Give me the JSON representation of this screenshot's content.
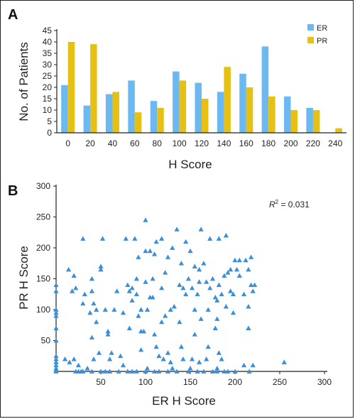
{
  "panels": {
    "a": "A",
    "b": "B"
  },
  "colors": {
    "er": "#6BB9F0",
    "pr": "#E6C012",
    "scatter": "#3A8FD8",
    "axis": "#222222"
  },
  "chart_data": [
    {
      "type": "bar",
      "title": "",
      "xlabel": "H Score",
      "ylabel": "No. of Patients",
      "categories": [
        "0",
        "20",
        "40",
        "60",
        "80",
        "100",
        "120",
        "140",
        "160",
        "180",
        "200",
        "220",
        "240"
      ],
      "ylim": [
        0,
        45
      ],
      "yticks": [
        0,
        5,
        10,
        15,
        20,
        25,
        30,
        35,
        40,
        45
      ],
      "legend_position": "top-right",
      "series": [
        {
          "name": "ER",
          "values": [
            21,
            12,
            17,
            23,
            14,
            27,
            22,
            18,
            26,
            38,
            16,
            11,
            0
          ]
        },
        {
          "name": "PR",
          "values": [
            40,
            39,
            18,
            9,
            11,
            23,
            15,
            29,
            20,
            16,
            10,
            10,
            2
          ]
        }
      ]
    },
    {
      "type": "scatter",
      "title": "",
      "xlabel": "ER H Score",
      "ylabel": "PR H Score",
      "xlim": [
        0,
        300
      ],
      "ylim": [
        0,
        300
      ],
      "xticks": [
        50,
        100,
        150,
        200,
        250,
        300
      ],
      "yticks": [
        50,
        100,
        150,
        200,
        250,
        300
      ],
      "annotation": {
        "prefix": "R",
        "sup": "2",
        "suffix": " = 0.031"
      },
      "points": [
        [
          0,
          140
        ],
        [
          0,
          130
        ],
        [
          0,
          100
        ],
        [
          0,
          95
        ],
        [
          0,
          90
        ],
        [
          0,
          70
        ],
        [
          0,
          50
        ],
        [
          0,
          25
        ],
        [
          0,
          20
        ],
        [
          0,
          15
        ],
        [
          0,
          10
        ],
        [
          0,
          5
        ],
        [
          0,
          2
        ],
        [
          0,
          0
        ],
        [
          10,
          20
        ],
        [
          14,
          165
        ],
        [
          15,
          15
        ],
        [
          18,
          130
        ],
        [
          20,
          155
        ],
        [
          20,
          20
        ],
        [
          22,
          135
        ],
        [
          22,
          0
        ],
        [
          25,
          0
        ],
        [
          25,
          10
        ],
        [
          28,
          0
        ],
        [
          30,
          215
        ],
        [
          30,
          0
        ],
        [
          30,
          110
        ],
        [
          32,
          125
        ],
        [
          35,
          5
        ],
        [
          38,
          95
        ],
        [
          40,
          0
        ],
        [
          40,
          150
        ],
        [
          40,
          130
        ],
        [
          40,
          55
        ],
        [
          42,
          20
        ],
        [
          42,
          110
        ],
        [
          45,
          80
        ],
        [
          45,
          100
        ],
        [
          48,
          30
        ],
        [
          50,
          0
        ],
        [
          50,
          165
        ],
        [
          50,
          170
        ],
        [
          52,
          215
        ],
        [
          55,
          0
        ],
        [
          55,
          100
        ],
        [
          58,
          65
        ],
        [
          58,
          60
        ],
        [
          60,
          0
        ],
        [
          60,
          20
        ],
        [
          62,
          30
        ],
        [
          65,
          100
        ],
        [
          68,
          130
        ],
        [
          70,
          0
        ],
        [
          72,
          25
        ],
        [
          75,
          95
        ],
        [
          75,
          10
        ],
        [
          78,
          215
        ],
        [
          80,
          0
        ],
        [
          80,
          140
        ],
        [
          82,
          130
        ],
        [
          82,
          70
        ],
        [
          85,
          135
        ],
        [
          85,
          115
        ],
        [
          85,
          0
        ],
        [
          88,
          215
        ],
        [
          90,
          0
        ],
        [
          90,
          125
        ],
        [
          90,
          150
        ],
        [
          92,
          185
        ],
        [
          92,
          90
        ],
        [
          95,
          100
        ],
        [
          95,
          65
        ],
        [
          95,
          35
        ],
        [
          98,
          65
        ],
        [
          100,
          0
        ],
        [
          100,
          195
        ],
        [
          100,
          245
        ],
        [
          100,
          145
        ],
        [
          102,
          100
        ],
        [
          102,
          5
        ],
        [
          105,
          120
        ],
        [
          105,
          195
        ],
        [
          108,
          120
        ],
        [
          108,
          150
        ],
        [
          110,
          0
        ],
        [
          110,
          190
        ],
        [
          110,
          60
        ],
        [
          112,
          210
        ],
        [
          112,
          40
        ],
        [
          115,
          0
        ],
        [
          115,
          25
        ],
        [
          118,
          80
        ],
        [
          118,
          135
        ],
        [
          118,
          215
        ],
        [
          120,
          20
        ],
        [
          122,
          160
        ],
        [
          122,
          90
        ],
        [
          125,
          0
        ],
        [
          125,
          30
        ],
        [
          125,
          185
        ],
        [
          128,
          100
        ],
        [
          128,
          15
        ],
        [
          130,
          200
        ],
        [
          130,
          5
        ],
        [
          132,
          105
        ],
        [
          135,
          230
        ],
        [
          135,
          0
        ],
        [
          138,
          140
        ],
        [
          138,
          80
        ],
        [
          140,
          175
        ],
        [
          140,
          40
        ],
        [
          142,
          135
        ],
        [
          142,
          20
        ],
        [
          145,
          210
        ],
        [
          145,
          125
        ],
        [
          148,
          150
        ],
        [
          148,
          0
        ],
        [
          150,
          195
        ],
        [
          150,
          5
        ],
        [
          152,
          20
        ],
        [
          152,
          135
        ],
        [
          155,
          170
        ],
        [
          155,
          100
        ],
        [
          155,
          60
        ],
        [
          158,
          125
        ],
        [
          158,
          0
        ],
        [
          160,
          145
        ],
        [
          160,
          165
        ],
        [
          160,
          15
        ],
        [
          162,
          85
        ],
        [
          162,
          230
        ],
        [
          165,
          175
        ],
        [
          165,
          0
        ],
        [
          168,
          145
        ],
        [
          168,
          20
        ],
        [
          170,
          100
        ],
        [
          170,
          40
        ],
        [
          172,
          135
        ],
        [
          172,
          215
        ],
        [
          175,
          0
        ],
        [
          175,
          150
        ],
        [
          178,
          120
        ],
        [
          178,
          70
        ],
        [
          180,
          115
        ],
        [
          180,
          85
        ],
        [
          180,
          5
        ],
        [
          180,
          0
        ],
        [
          182,
          140
        ],
        [
          182,
          215
        ],
        [
          182,
          30
        ],
        [
          185,
          125
        ],
        [
          185,
          20
        ],
        [
          188,
          0
        ],
        [
          188,
          155
        ],
        [
          190,
          220
        ],
        [
          190,
          105
        ],
        [
          192,
          160
        ],
        [
          192,
          0
        ],
        [
          195,
          165
        ],
        [
          195,
          130
        ],
        [
          198,
          95
        ],
        [
          198,
          125
        ],
        [
          200,
          180
        ],
        [
          200,
          0
        ],
        [
          202,
          165
        ],
        [
          205,
          180
        ],
        [
          205,
          155
        ],
        [
          210,
          10
        ],
        [
          210,
          125
        ],
        [
          212,
          180
        ],
        [
          215,
          70
        ],
        [
          215,
          105
        ],
        [
          215,
          165
        ],
        [
          216,
          0
        ],
        [
          218,
          140
        ],
        [
          218,
          185
        ],
        [
          220,
          10
        ],
        [
          220,
          130
        ],
        [
          222,
          140
        ],
        [
          255,
          15
        ]
      ]
    }
  ]
}
